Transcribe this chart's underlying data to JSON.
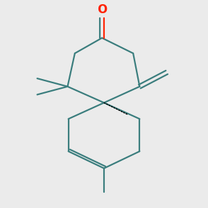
{
  "bg_color": "#ebebeb",
  "bond_color": "#3a7d7d",
  "oxygen_color": "#ff2200",
  "lw": 1.6,
  "spiro": [
    0.0,
    0.0
  ],
  "top_ring_r": 0.88,
  "bot_ring_r": 0.88
}
